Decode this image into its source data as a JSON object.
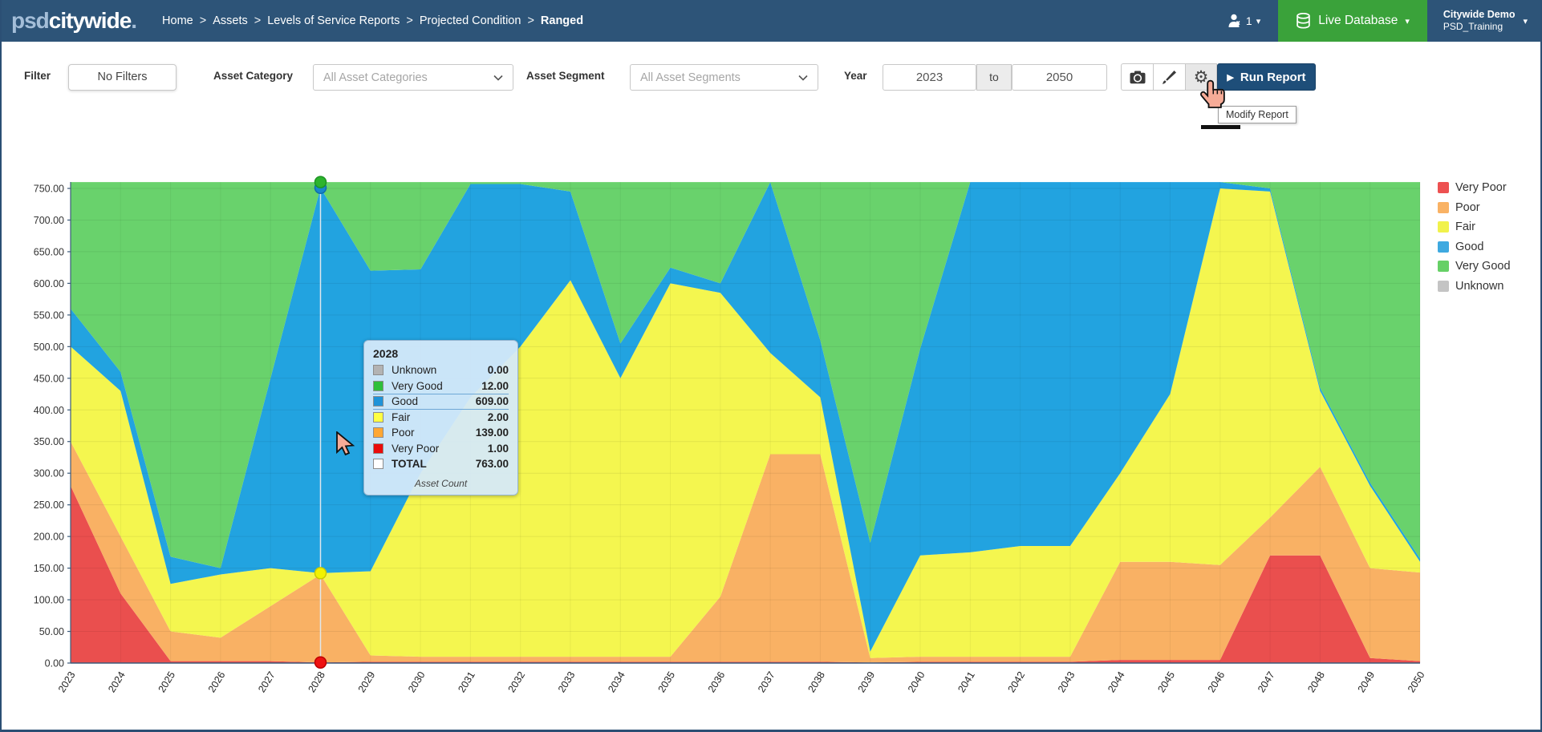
{
  "navbar": {
    "logo_psd": "psd",
    "logo_citywide": "citywide",
    "logo_dot": ".",
    "breadcrumb": [
      "Home",
      "Assets",
      "Levels of Service Reports",
      "Projected Condition",
      "Ranged"
    ],
    "breadcrumb_separator": ">",
    "user_count": "1",
    "db_button_label": "Live Database",
    "account_name": "Citywide Demo",
    "account_sub": "PSD_Training"
  },
  "filterbar": {
    "filter_label": "Filter",
    "no_filters_label": "No Filters",
    "asset_category_label": "Asset Category",
    "asset_category_value": "All Asset Categories",
    "asset_segment_label": "Asset Segment",
    "asset_segment_value": "All Asset Segments",
    "year_label": "Year",
    "year_from": "2023",
    "to_label": "to",
    "year_to": "2050",
    "run_report_label": "Run Report",
    "modify_report_tooltip": "Modify Report",
    "icons": [
      "camera-icon",
      "brush-icon",
      "gear-icon"
    ]
  },
  "chart_data": {
    "type": "area",
    "stacked": true,
    "title": "",
    "xlabel": "",
    "ylabel": "",
    "ylim": [
      0,
      760
    ],
    "ytick_step": 50,
    "ytick_format": "0.00 to 750.00 step 50",
    "grid": true,
    "legend_position": "right-top",
    "years": [
      "2023",
      "2024",
      "2025",
      "2026",
      "2027",
      "2028",
      "2029",
      "2030",
      "2031",
      "2032",
      "2033",
      "2034",
      "2035",
      "2036",
      "2037",
      "2038",
      "2039",
      "2040",
      "2041",
      "2042",
      "2043",
      "2044",
      "2045",
      "2046",
      "2047",
      "2048",
      "2049",
      "2050"
    ],
    "total_per_year": 763,
    "series": [
      {
        "name": "Very Poor",
        "color": "#ea4f4e",
        "values": [
          280,
          110,
          3,
          3,
          3,
          1,
          2,
          2,
          2,
          2,
          2,
          2,
          2,
          2,
          2,
          2,
          1,
          2,
          2,
          2,
          2,
          5,
          5,
          5,
          170,
          170,
          8,
          3
        ]
      },
      {
        "name": "Poor",
        "color": "#f9b164",
        "values": [
          70,
          90,
          47,
          37,
          87,
          139,
          10,
          8,
          8,
          8,
          8,
          8,
          8,
          103,
          328,
          328,
          7,
          8,
          8,
          8,
          8,
          155,
          155,
          150,
          60,
          140,
          142,
          140
        ]
      },
      {
        "name": "Fair",
        "color": "#f4f64f",
        "values": [
          150,
          230,
          75,
          100,
          60,
          2,
          133,
          290,
          410,
          490,
          595,
          440,
          590,
          480,
          160,
          90,
          10,
          160,
          165,
          175,
          175,
          140,
          265,
          595,
          515,
          120,
          130,
          17
        ]
      },
      {
        "name": "Good",
        "color": "#22a3e0",
        "values": [
          60,
          30,
          43,
          10,
          300,
          609,
          475,
          322,
          337,
          257,
          140,
          55,
          25,
          15,
          270,
          90,
          172,
          327,
          588,
          578,
          578,
          463,
          338,
          13,
          5,
          5,
          5,
          5
        ]
      },
      {
        "name": "Very Good",
        "color": "#69d26c",
        "values": [
          203,
          303,
          595,
          613,
          313,
          12,
          143,
          141,
          6,
          6,
          18,
          258,
          138,
          163,
          3,
          253,
          573,
          266,
          0,
          0,
          0,
          0,
          0,
          0,
          13,
          328,
          478,
          598
        ]
      },
      {
        "name": "Unknown",
        "color": "#c4c4c4",
        "values": [
          0,
          0,
          0,
          0,
          0,
          0,
          0,
          0,
          0,
          0,
          0,
          0,
          0,
          0,
          0,
          0,
          0,
          0,
          0,
          0,
          0,
          0,
          0,
          0,
          0,
          0,
          0,
          0
        ]
      }
    ],
    "legend": [
      {
        "label": "Very Poor",
        "color": "#ed5151"
      },
      {
        "label": "Poor",
        "color": "#f9b264"
      },
      {
        "label": "Fair",
        "color": "#f1f24b"
      },
      {
        "label": "Good",
        "color": "#3ea9e0"
      },
      {
        "label": "Very Good",
        "color": "#66d066"
      },
      {
        "label": "Unknown",
        "color": "#c4c4c4"
      }
    ],
    "hover": {
      "year": "2028",
      "year_index": 5,
      "line_color": "#dfe7ec",
      "points": [
        {
          "value": 751,
          "fill": "#1787cd",
          "stroke": "#0f6dab"
        },
        {
          "value": 763,
          "fill": "#2db42d",
          "stroke": "#1d9423"
        },
        {
          "value": 142,
          "fill": "#f2f200",
          "stroke": "#c9c900"
        },
        {
          "value": 1,
          "fill": "#ee1111",
          "stroke": "#bb0000"
        }
      ]
    }
  },
  "chart_tooltip": {
    "title": "2028",
    "rows": [
      {
        "label": "Unknown",
        "value": "0.00",
        "color": "#b3b3b3"
      },
      {
        "label": "Very Good",
        "value": "12.00",
        "color": "#2fbf3a"
      },
      {
        "label": "Good",
        "value": "609.00",
        "color": "#1f93d8",
        "highlight": true
      },
      {
        "label": "Fair",
        "value": "2.00",
        "color": "#ffff42"
      },
      {
        "label": "Poor",
        "value": "139.00",
        "color": "#ffa733"
      },
      {
        "label": "Very Poor",
        "value": "1.00",
        "color": "#ea0b0b"
      },
      {
        "label": "TOTAL",
        "value": "763.00",
        "color": "#ffffff",
        "bold": true
      }
    ],
    "footer": "Asset Count"
  }
}
